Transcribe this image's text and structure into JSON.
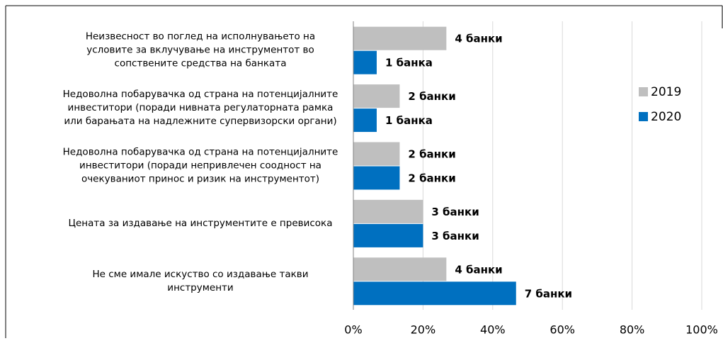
{
  "chart_data": {
    "type": "bar",
    "orientation": "horizontal",
    "categories": [
      [
        "Неизвесност во поглед на исполнувањето на",
        "условите за вклучување на инструментот во",
        "сопствените средства на банката"
      ],
      [
        "Недоволна побарувачка од страна на потенцијалните",
        "инвеститори (поради нивната регулаторната рамка",
        "или барањата на надлежните супервизорски органи)"
      ],
      [
        "Недоволна побарувачка од страна на потенцијалните",
        "инвеститори (поради непривлечен соодност на",
        "очекуваниот принос и ризик на инструментот)"
      ],
      [
        "Цената за издавање на инструментите е превисока"
      ],
      [
        "Не сме имале искуство со издавање такви",
        "инструменти"
      ]
    ],
    "series": [
      {
        "name": "2019",
        "color": "#bfbfbf",
        "label_color": "#808080",
        "values": [
          26.7,
          13.3,
          13.3,
          20,
          26.7
        ],
        "value_labels": [
          "4 банки",
          "2 банки",
          "2 банки",
          "3 банки",
          "4 банки"
        ]
      },
      {
        "name": "2020",
        "color": "#0070c0",
        "label_color": "#0070c0",
        "values": [
          6.7,
          6.7,
          13.3,
          20,
          46.7
        ],
        "value_labels": [
          "1 банка",
          "1 банка",
          "2 банки",
          "3 банки",
          "7 банки"
        ]
      }
    ],
    "xlim": [
      0,
      100
    ],
    "xticks": [
      {
        "value": 0,
        "label": "0%"
      },
      {
        "value": 20,
        "label": "20%"
      },
      {
        "value": 40,
        "label": "40%"
      },
      {
        "value": 60,
        "label": "60%"
      },
      {
        "value": 80,
        "label": "80%"
      },
      {
        "value": 100,
        "label": "100%"
      }
    ],
    "grid": true,
    "legend": "right"
  }
}
